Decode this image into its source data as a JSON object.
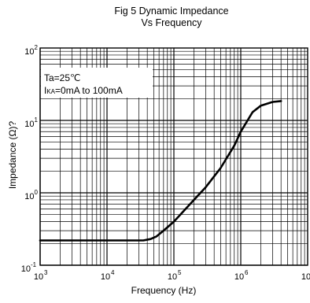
{
  "chart_data": {
    "type": "line",
    "title": "Fig 5 Dynamic Impedance",
    "subtitle": "Vs Frequency",
    "xlabel": "Frequency   (Hz)",
    "ylabel": "Impedance  (Ω)?",
    "x_scale": "log",
    "y_scale": "log",
    "xlim": [
      1000,
      10000000
    ],
    "ylim": [
      0.1,
      100
    ],
    "grid": true,
    "x_ticks": [
      {
        "base": "10",
        "exp": "3"
      },
      {
        "base": "10",
        "exp": "4"
      },
      {
        "base": "10",
        "exp": "5"
      },
      {
        "base": "10",
        "exp": "6"
      },
      {
        "base": "10",
        "exp": "7"
      }
    ],
    "y_ticks": [
      {
        "base": "10",
        "exp": "-1"
      },
      {
        "base": "10",
        "exp": "0"
      },
      {
        "base": "10",
        "exp": "1"
      },
      {
        "base": "10",
        "exp": "2"
      }
    ],
    "annotations": {
      "line1": "Ta=25℃",
      "line2_prefix": "I",
      "line2_sub": "KA",
      "line2_rest": "=0mA to 100mA"
    },
    "series": [
      {
        "x": [
          1000,
          10000,
          35000,
          45000,
          55000,
          70000,
          100000,
          200000,
          300000,
          500000,
          800000,
          1000000,
          1500000,
          2000000,
          3000000,
          4000000
        ],
        "y": [
          0.22,
          0.22,
          0.22,
          0.23,
          0.25,
          0.3,
          0.4,
          0.8,
          1.2,
          2.2,
          4.5,
          7,
          13,
          16,
          18,
          18.5
        ]
      }
    ]
  }
}
